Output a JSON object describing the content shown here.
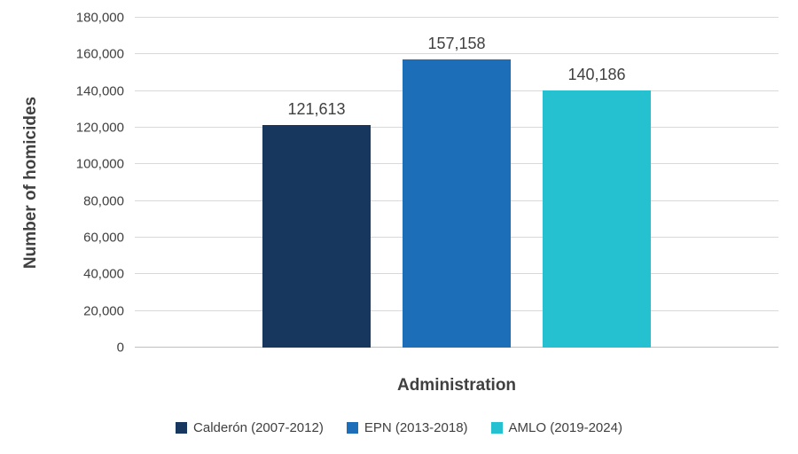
{
  "chart_data": {
    "type": "bar",
    "title": "",
    "categories": [
      "Calderón (2007-2012)",
      "EPN (2013-2018)",
      "AMLO (2019-2024)"
    ],
    "values": [
      121613,
      157158,
      140186
    ],
    "value_labels": [
      "121,613",
      "157,158",
      "140,186"
    ],
    "colors": [
      "#17375E",
      "#1B6EB7",
      "#26C1D1"
    ],
    "xlabel": "Administration",
    "ylabel": "Number of homicides",
    "ylim": [
      0,
      180000
    ],
    "ytick_step": 20000,
    "ytick_labels": [
      "0",
      "20,000",
      "40,000",
      "60,000",
      "80,000",
      "100,000",
      "120,000",
      "140,000",
      "160,000",
      "180,000"
    ],
    "grid": true,
    "legend_position": "bottom"
  }
}
